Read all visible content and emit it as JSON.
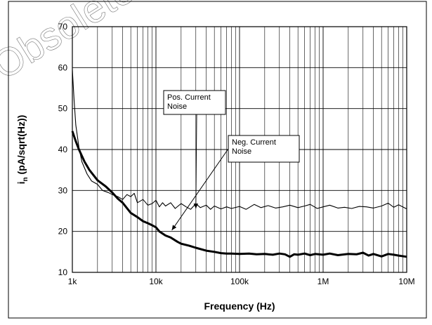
{
  "watermark": "Obsolete",
  "chart_data": {
    "type": "line",
    "xscale": "log",
    "xlim": [
      1000,
      10000000
    ],
    "ylim": [
      10,
      70
    ],
    "grid": true,
    "xlabel": "Frequency  (Hz)",
    "ylabel_main": "i",
    "ylabel_sub": "n",
    "ylabel_rest": " (pA/sqrt(Hz))",
    "xticks": [
      {
        "value": 1000,
        "label": "1k"
      },
      {
        "value": 10000,
        "label": "10k"
      },
      {
        "value": 100000,
        "label": "100k"
      },
      {
        "value": 1000000,
        "label": "1M"
      },
      {
        "value": 10000000,
        "label": "10M"
      }
    ],
    "yticks": [
      {
        "value": 10,
        "label": "10"
      },
      {
        "value": 20,
        "label": "20"
      },
      {
        "value": 30,
        "label": "30"
      },
      {
        "value": 40,
        "label": "40"
      },
      {
        "value": 50,
        "label": "50"
      },
      {
        "value": 60,
        "label": "60"
      },
      {
        "value": 70,
        "label": "70"
      }
    ],
    "series": [
      {
        "name": "Pos. Current Noise",
        "style": "thin",
        "color": "#000000",
        "x": [
          1000,
          1050,
          1100,
          1200,
          1300,
          1500,
          1700,
          2000,
          2300,
          2700,
          3000,
          3500,
          4000,
          4500,
          5000,
          5500,
          6000,
          7000,
          8000,
          9000,
          10000,
          11000,
          12000,
          13000,
          15000,
          17000,
          20000,
          23000,
          26000,
          30000,
          34000,
          40000,
          45000,
          50000,
          60000,
          70000,
          80000,
          100000,
          120000,
          150000,
          180000,
          220000,
          270000,
          330000,
          400000,
          500000,
          600000,
          700000,
          850000,
          1000000,
          1200000,
          1500000,
          1800000,
          2200000,
          2700000,
          3300000,
          4000000,
          5000000,
          6000000,
          7000000,
          8000000,
          10000000
        ],
        "y": [
          59.5,
          52.0,
          46.0,
          40.5,
          37.0,
          34.0,
          32.3,
          31.5,
          30.0,
          29.5,
          29.0,
          28.5,
          27.8,
          29.0,
          28.5,
          29.3,
          27.0,
          27.8,
          26.4,
          26.8,
          27.6,
          26.0,
          27.0,
          26.2,
          27.0,
          25.6,
          26.8,
          26.0,
          25.4,
          26.8,
          25.8,
          26.4,
          25.4,
          26.2,
          25.5,
          26.0,
          25.6,
          26.1,
          25.4,
          26.6,
          25.8,
          26.3,
          25.7,
          26.0,
          26.4,
          25.8,
          26.2,
          26.6,
          25.6,
          26.0,
          26.4,
          25.7,
          25.9,
          25.6,
          26.1,
          26.0,
          25.7,
          26.2,
          26.9,
          25.9,
          26.5,
          25.5
        ]
      },
      {
        "name": "Neg. Current Noise",
        "style": "bold",
        "color": "#000000",
        "x": [
          1000,
          1100,
          1200,
          1400,
          1600,
          2000,
          2500,
          3000,
          3500,
          4000,
          5000,
          6000,
          7000,
          8000,
          9000,
          10000,
          11000,
          13000,
          15000,
          18000,
          20000,
          25000,
          30000,
          40000,
          50000,
          60000,
          70000,
          80000,
          100000,
          130000,
          160000,
          200000,
          250000,
          300000,
          350000,
          400000,
          450000,
          500000,
          600000,
          700000,
          800000,
          1000000,
          1200000,
          1500000,
          2000000,
          2500000,
          3000000,
          3500000,
          4000000,
          5000000,
          6000000,
          7000000,
          8000000,
          10000000
        ],
        "y": [
          44.5,
          42.0,
          40.0,
          37.0,
          35.0,
          32.5,
          31.0,
          29.5,
          28.0,
          27.0,
          24.5,
          23.5,
          22.5,
          22.0,
          21.5,
          21.0,
          20.0,
          19.0,
          18.5,
          17.5,
          17.0,
          16.5,
          16.0,
          15.3,
          15.0,
          14.7,
          14.6,
          14.6,
          14.5,
          14.6,
          14.4,
          14.5,
          14.3,
          14.6,
          14.4,
          13.8,
          14.4,
          14.3,
          14.6,
          14.2,
          14.5,
          14.3,
          14.6,
          14.2,
          14.5,
          14.4,
          14.8,
          14.1,
          14.5,
          13.9,
          14.5,
          14.3,
          14.1,
          13.8
        ]
      }
    ],
    "annotations": [
      {
        "lines": [
          "Pos. Current",
          "Noise"
        ],
        "target_x": 30000,
        "target_y": 25.6
      },
      {
        "lines": [
          "Neg. Current",
          "Noise"
        ],
        "target_x": 15500,
        "target_y": 20.3
      }
    ]
  }
}
